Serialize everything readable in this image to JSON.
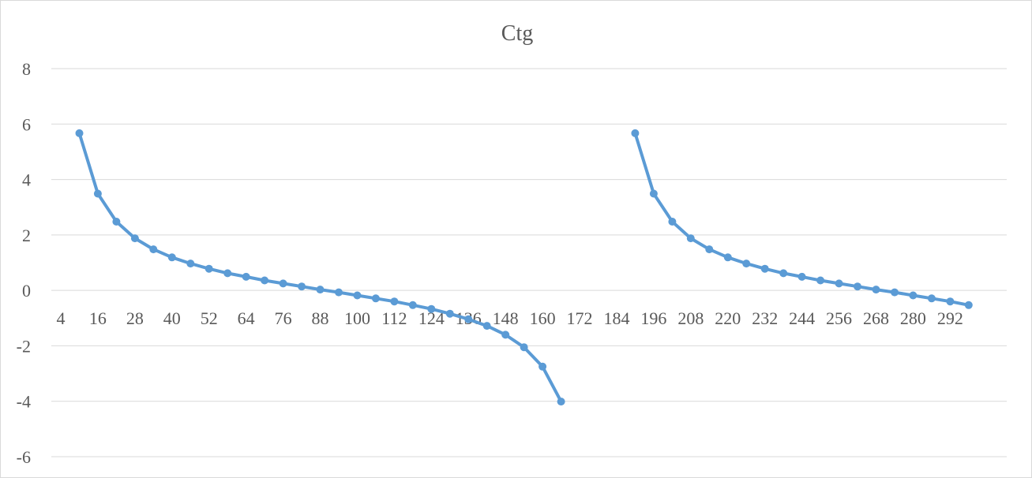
{
  "chart_data": {
    "type": "line",
    "title": "Ctg",
    "xlabel": "",
    "ylabel": "",
    "ylim": [
      -6,
      8
    ],
    "yticks": [
      8,
      6,
      4,
      2,
      0,
      -2,
      -4,
      -6
    ],
    "xlim": [
      4,
      300
    ],
    "xticks": [
      4,
      16,
      28,
      40,
      52,
      64,
      76,
      88,
      100,
      112,
      124,
      136,
      148,
      160,
      172,
      184,
      196,
      208,
      220,
      232,
      244,
      256,
      268,
      280,
      292
    ],
    "grid": true,
    "legend": "none",
    "marker": "circle",
    "series": [
      {
        "color": "#5b9bd5",
        "segments": [
          {
            "x": [
              10,
              16,
              22,
              28,
              34,
              40,
              46,
              52,
              58,
              64,
              70,
              76,
              82,
              88,
              94,
              100,
              106,
              112,
              118,
              124,
              130,
              136,
              142,
              148,
              154,
              160,
              166
            ],
            "y": [
              5.67,
              3.49,
              2.48,
              1.88,
              1.48,
              1.19,
              0.97,
              0.78,
              0.62,
              0.49,
              0.36,
              0.25,
              0.14,
              0.03,
              -0.07,
              -0.18,
              -0.29,
              -0.4,
              -0.53,
              -0.67,
              -0.84,
              -1.04,
              -1.28,
              -1.6,
              -2.05,
              -2.75,
              -4.01
            ]
          },
          {
            "x": [
              190,
              196,
              202,
              208,
              214,
              220,
              226,
              232,
              238,
              244,
              250,
              256,
              262,
              268,
              274,
              280,
              286,
              292,
              298
            ],
            "y": [
              5.67,
              3.49,
              2.48,
              1.88,
              1.48,
              1.19,
              0.97,
              0.78,
              0.62,
              0.49,
              0.36,
              0.25,
              0.14,
              0.03,
              -0.07,
              -0.18,
              -0.29,
              -0.4,
              -0.53
            ]
          }
        ]
      }
    ]
  }
}
